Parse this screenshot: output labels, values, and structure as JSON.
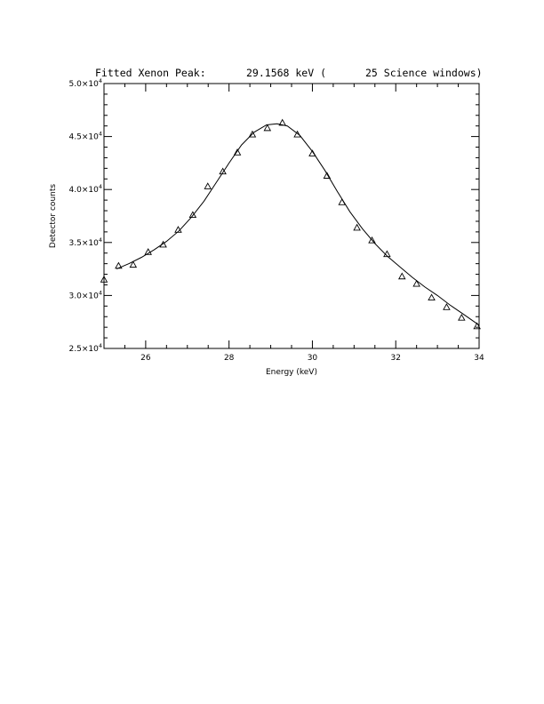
{
  "chart_data": {
    "type": "scatter",
    "title_parts": [
      "Fitted Xenon Peak:",
      "29.1568 keV (",
      "25 Science windows)"
    ],
    "xlabel": "Energy (keV)",
    "ylabel": "Detector counts",
    "xlim": [
      25,
      34
    ],
    "ylim": [
      25000,
      50000
    ],
    "x_tick_labels": [
      "26",
      "28",
      "30",
      "32",
      "34"
    ],
    "x_tick_values": [
      26,
      28,
      30,
      32,
      34
    ],
    "y_tick_values": [
      25000,
      30000,
      35000,
      40000,
      45000,
      50000
    ],
    "y_tick_labels": [
      {
        "mantissa": "2.5×10",
        "exp": "4"
      },
      {
        "mantissa": "3.0×10",
        "exp": "4"
      },
      {
        "mantissa": "3.5×10",
        "exp": "4"
      },
      {
        "mantissa": "4.0×10",
        "exp": "4"
      },
      {
        "mantissa": "4.5×10",
        "exp": "4"
      },
      {
        "mantissa": "5.0×10",
        "exp": "4"
      }
    ],
    "grid": false,
    "series": [
      {
        "kind": "points",
        "marker": "triangle",
        "x": [
          25.0,
          25.35,
          25.7,
          26.06,
          26.42,
          26.78,
          27.13,
          27.49,
          27.85,
          28.2,
          28.56,
          28.92,
          29.28,
          29.64,
          30.0,
          30.35,
          30.71,
          31.07,
          31.43,
          31.79,
          32.15,
          32.5,
          32.86,
          33.22,
          33.58,
          33.95
        ],
        "y": [
          31500,
          32800,
          32900,
          34100,
          34800,
          36200,
          37600,
          40300,
          41700,
          43500,
          45200,
          45800,
          46300,
          45200,
          43400,
          41300,
          38800,
          36400,
          35200,
          33900,
          31800,
          31100,
          29800,
          28900,
          27900,
          27100
        ]
      },
      {
        "kind": "line",
        "x": [
          25.3,
          25.6,
          25.9,
          26.2,
          26.5,
          26.8,
          27.1,
          27.4,
          27.7,
          28.0,
          28.3,
          28.6,
          28.9,
          29.15,
          29.4,
          29.7,
          30.0,
          30.3,
          30.6,
          30.9,
          31.2,
          31.5,
          31.8,
          32.1,
          32.4,
          32.7,
          33.0,
          33.3,
          33.6,
          34.0
        ],
        "y": [
          32500,
          33000,
          33600,
          34300,
          35100,
          36100,
          37400,
          38900,
          40700,
          42500,
          44200,
          45400,
          46100,
          46200,
          46000,
          45100,
          43600,
          41800,
          39800,
          37900,
          36300,
          34900,
          33700,
          32700,
          31700,
          30800,
          30000,
          29100,
          28300,
          27200
        ]
      }
    ]
  }
}
